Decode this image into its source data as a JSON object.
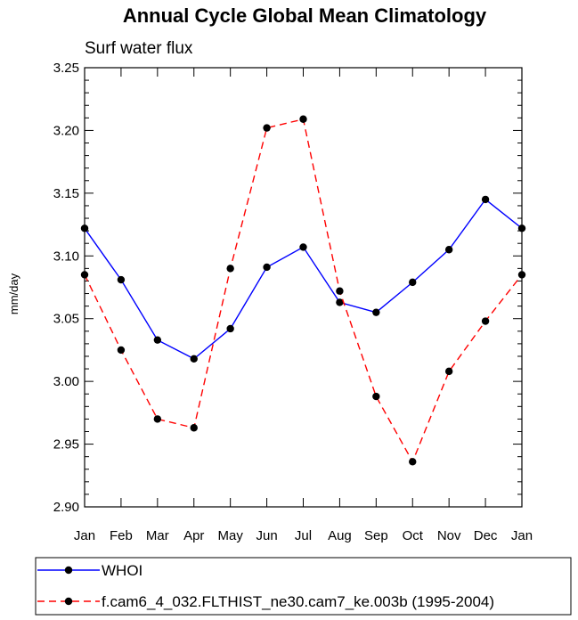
{
  "chart_data": {
    "type": "line",
    "title": "Annual Cycle Global Mean Climatology",
    "subtitle": "Surf water flux",
    "ylabel": "mm/day",
    "xlabel": "",
    "categories": [
      "Jan",
      "Feb",
      "Mar",
      "Apr",
      "May",
      "Jun",
      "Jul",
      "Aug",
      "Sep",
      "Oct",
      "Nov",
      "Dec",
      "Jan"
    ],
    "ylim": [
      2.9,
      3.25
    ],
    "yticks": [
      "2.90",
      "2.95",
      "3.00",
      "3.05",
      "3.10",
      "3.15",
      "3.20",
      "3.25"
    ],
    "series": [
      {
        "name": "WHOI",
        "color": "#0000ff",
        "dash": "solid",
        "values": [
          3.122,
          3.081,
          3.033,
          3.018,
          3.042,
          3.091,
          3.107,
          3.063,
          3.055,
          3.079,
          3.105,
          3.145,
          3.122
        ]
      },
      {
        "name": "f.cam6_4_032.FLTHIST_ne30.cam7_ke.003b (1995-2004)",
        "color": "#ff0000",
        "dash": "dashed",
        "values": [
          3.085,
          3.025,
          2.97,
          2.963,
          3.09,
          3.202,
          3.209,
          3.072,
          2.988,
          2.936,
          3.008,
          3.048,
          3.085
        ]
      }
    ],
    "legend": "bottom"
  }
}
